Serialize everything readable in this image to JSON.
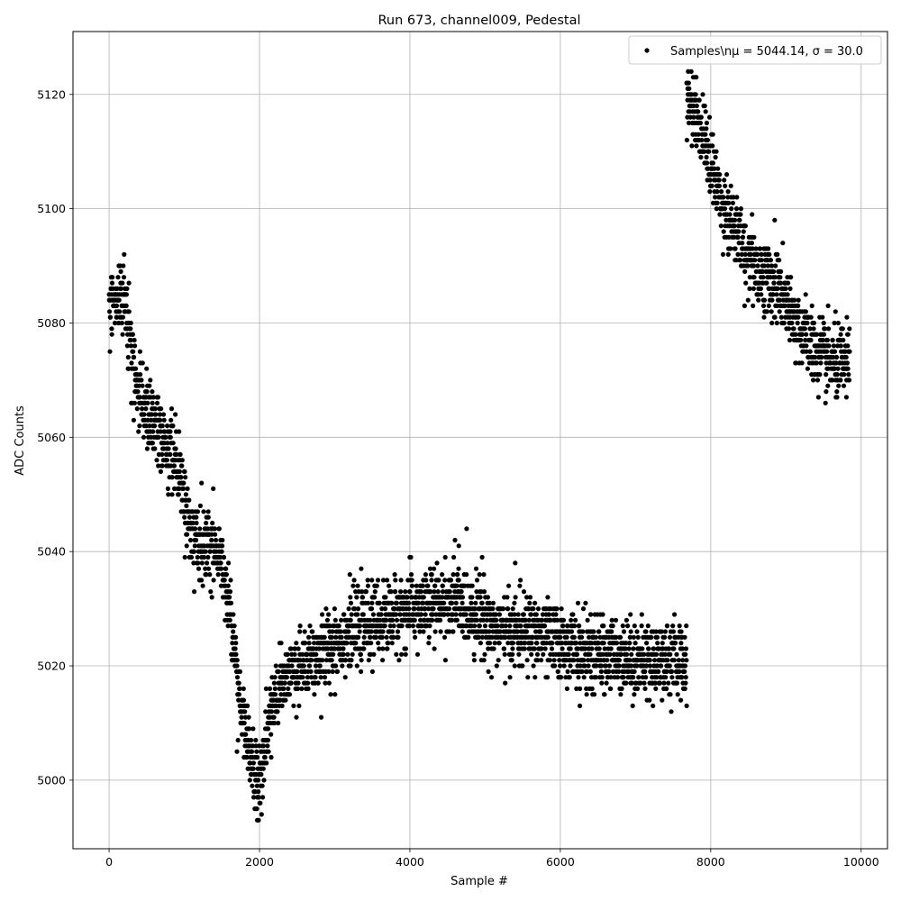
{
  "chart_data": {
    "type": "scatter",
    "title": "Run 673, channel009, Pedestal",
    "xlabel": "Sample #",
    "ylabel": "ADC Counts",
    "xlim": [
      -480,
      10350
    ],
    "ylim": [
      4988,
      5131
    ],
    "xticks": [
      0,
      2000,
      4000,
      6000,
      8000,
      10000
    ],
    "yticks": [
      5000,
      5020,
      5040,
      5060,
      5080,
      5100,
      5120
    ],
    "grid": true,
    "legend": {
      "placement": "top-right",
      "entries": [
        "Samples\\nμ = 5044.14, σ = 30.0"
      ]
    },
    "marker_color": "#000000",
    "series": [
      {
        "name": "Samples\\nμ = 5044.14, σ = 30.0",
        "profile": {
          "x": [
            0,
            100,
            200,
            300,
            400,
            500,
            600,
            700,
            800,
            900,
            1000,
            1100,
            1200,
            1300,
            1400,
            1500,
            1600,
            1700,
            1800,
            1900,
            2000,
            2100,
            2200,
            2400,
            2600,
            2800,
            3000,
            3200,
            3400,
            3600,
            3800,
            4000,
            4200,
            4400,
            4600,
            4800,
            5000,
            5200,
            5400,
            5600,
            5800,
            6000,
            6200,
            6400,
            6600,
            6800,
            7000,
            7200,
            7400,
            7680
          ],
          "y": [
            5083,
            5084,
            5084,
            5074,
            5068,
            5064,
            5062,
            5060,
            5058,
            5055,
            5050,
            5043,
            5042,
            5042,
            5041,
            5038,
            5030,
            5018,
            5009,
            5002,
            4999,
            5008,
            5014,
            5018,
            5020,
            5022,
            5024,
            5026,
            5027,
            5028,
            5029,
            5030,
            5030,
            5031,
            5031,
            5030,
            5028,
            5026,
            5026,
            5026,
            5025,
            5024,
            5023,
            5022,
            5022,
            5022,
            5021,
            5021,
            5021,
            5021
          ]
        },
        "profile2": {
          "x": [
            7680,
            7800,
            7900,
            8000,
            8100,
            8200,
            8300,
            8400,
            8500,
            8600,
            8700,
            8800,
            8900,
            9000,
            9100,
            9200,
            9300,
            9400,
            9500,
            9600,
            9700,
            9850
          ],
          "y": [
            5120,
            5117,
            5113,
            5108,
            5103,
            5100,
            5097,
            5094,
            5092,
            5090,
            5088,
            5087,
            5086,
            5083,
            5080,
            5079,
            5077,
            5075,
            5074,
            5073,
            5073,
            5073
          ]
        },
        "spread": 3.2,
        "n_points": 3400,
        "outliers": [
          {
            "x": 200,
            "y": 5092
          },
          {
            "x": 1230,
            "y": 5052
          },
          {
            "x": 1700,
            "y": 5005
          },
          {
            "x": 1970,
            "y": 4993
          },
          {
            "x": 4600,
            "y": 5042
          },
          {
            "x": 4650,
            "y": 5041
          },
          {
            "x": 4960,
            "y": 5039
          },
          {
            "x": 5400,
            "y": 5038
          },
          {
            "x": 2820,
            "y": 5011
          },
          {
            "x": 6260,
            "y": 5013
          },
          {
            "x": 7680,
            "y": 5013
          },
          {
            "x": 8850,
            "y": 5098
          },
          {
            "x": 8450,
            "y": 5083
          }
        ]
      }
    ]
  }
}
